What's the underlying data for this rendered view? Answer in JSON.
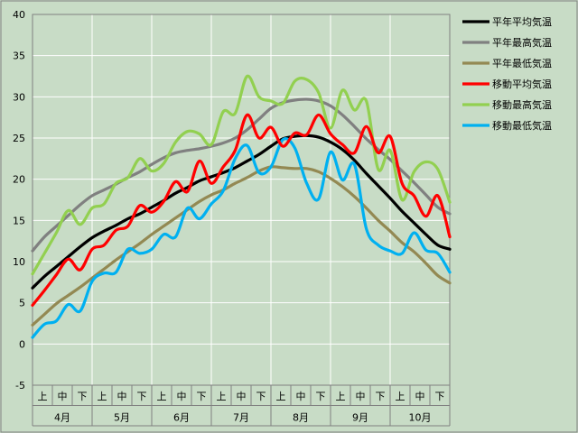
{
  "chart_data": {
    "type": "line",
    "ylim": [
      -5,
      40
    ],
    "yticks": [
      -5,
      0,
      5,
      10,
      15,
      20,
      25,
      30,
      35,
      40
    ],
    "month_labels": [
      "4月",
      "5月",
      "6月",
      "7月",
      "8月",
      "9月",
      "10月"
    ],
    "period_labels": [
      "上",
      "中",
      "下"
    ],
    "grid": true,
    "legend_position": "right",
    "series": [
      {
        "name": "平年平均気温",
        "color": "#000000",
        "values": [
          6.8,
          8.2,
          9.4,
          10.6,
          11.8,
          12.9,
          13.7,
          14.4,
          15.2,
          15.8,
          16.6,
          17.4,
          18.3,
          19.0,
          19.8,
          20.3,
          20.8,
          21.4,
          22.2,
          23.0,
          24.0,
          24.9,
          25.2,
          25.3,
          25.1,
          24.5,
          23.6,
          22.3,
          20.7,
          19.2,
          17.7,
          16.1,
          14.7,
          13.3,
          12.0,
          11.5
        ]
      },
      {
        "name": "平年最高気温",
        "color": "#808080",
        "values": [
          11.3,
          13.0,
          14.3,
          15.6,
          16.9,
          18.0,
          18.7,
          19.4,
          20.2,
          20.9,
          21.8,
          22.6,
          23.2,
          23.5,
          23.7,
          24.0,
          24.4,
          25.0,
          26.0,
          27.3,
          28.6,
          29.3,
          29.6,
          29.7,
          29.5,
          28.9,
          27.8,
          26.4,
          24.9,
          23.6,
          22.4,
          21.0,
          19.6,
          18.1,
          16.6,
          15.8
        ]
      },
      {
        "name": "平年最低気温",
        "color": "#938953",
        "values": [
          2.3,
          3.6,
          4.9,
          5.9,
          6.9,
          8.0,
          9.1,
          10.2,
          11.2,
          12.2,
          13.3,
          14.3,
          15.3,
          16.3,
          17.3,
          18.1,
          18.7,
          19.5,
          20.2,
          21.0,
          21.5,
          21.4,
          21.3,
          21.3,
          20.9,
          20.1,
          19.1,
          17.9,
          16.5,
          15.0,
          13.7,
          12.3,
          11.2,
          9.8,
          8.3,
          7.4
        ]
      },
      {
        "name": "移動平均気温",
        "color": "#ff0000",
        "values": [
          4.7,
          6.5,
          8.4,
          10.3,
          9.0,
          11.5,
          12.0,
          13.8,
          14.3,
          16.8,
          16.0,
          17.3,
          19.7,
          18.5,
          22.2,
          19.5,
          21.5,
          23.5,
          27.8,
          25.0,
          26.3,
          24.0,
          25.6,
          25.4,
          27.8,
          25.5,
          24.2,
          23.2,
          26.4,
          23.2,
          25.2,
          19.5,
          18.0,
          15.5,
          18.0,
          13.0
        ]
      },
      {
        "name": "移動最高気温",
        "color": "#92d050",
        "values": [
          8.5,
          11.0,
          13.5,
          16.2,
          14.5,
          16.5,
          17.0,
          19.5,
          20.2,
          22.5,
          21.0,
          21.9,
          24.5,
          25.8,
          25.5,
          24.2,
          28.2,
          28.0,
          32.5,
          30.0,
          29.5,
          29.2,
          31.9,
          32.1,
          30.5,
          26.2,
          30.8,
          28.4,
          29.5,
          21.2,
          23.5,
          17.5,
          20.9,
          22.1,
          21.2,
          17.2
        ]
      },
      {
        "name": "移動最低気温",
        "color": "#00b0f0",
        "values": [
          0.8,
          2.4,
          2.8,
          4.8,
          4.0,
          7.6,
          8.6,
          8.7,
          11.5,
          11.0,
          11.5,
          13.3,
          13.0,
          16.5,
          15.2,
          17.0,
          18.6,
          22.5,
          24.1,
          20.8,
          21.5,
          24.8,
          23.8,
          19.5,
          17.6,
          23.3,
          19.9,
          21.8,
          14.0,
          12.0,
          11.3,
          11.0,
          13.5,
          11.4,
          11.0,
          8.7
        ]
      }
    ]
  }
}
